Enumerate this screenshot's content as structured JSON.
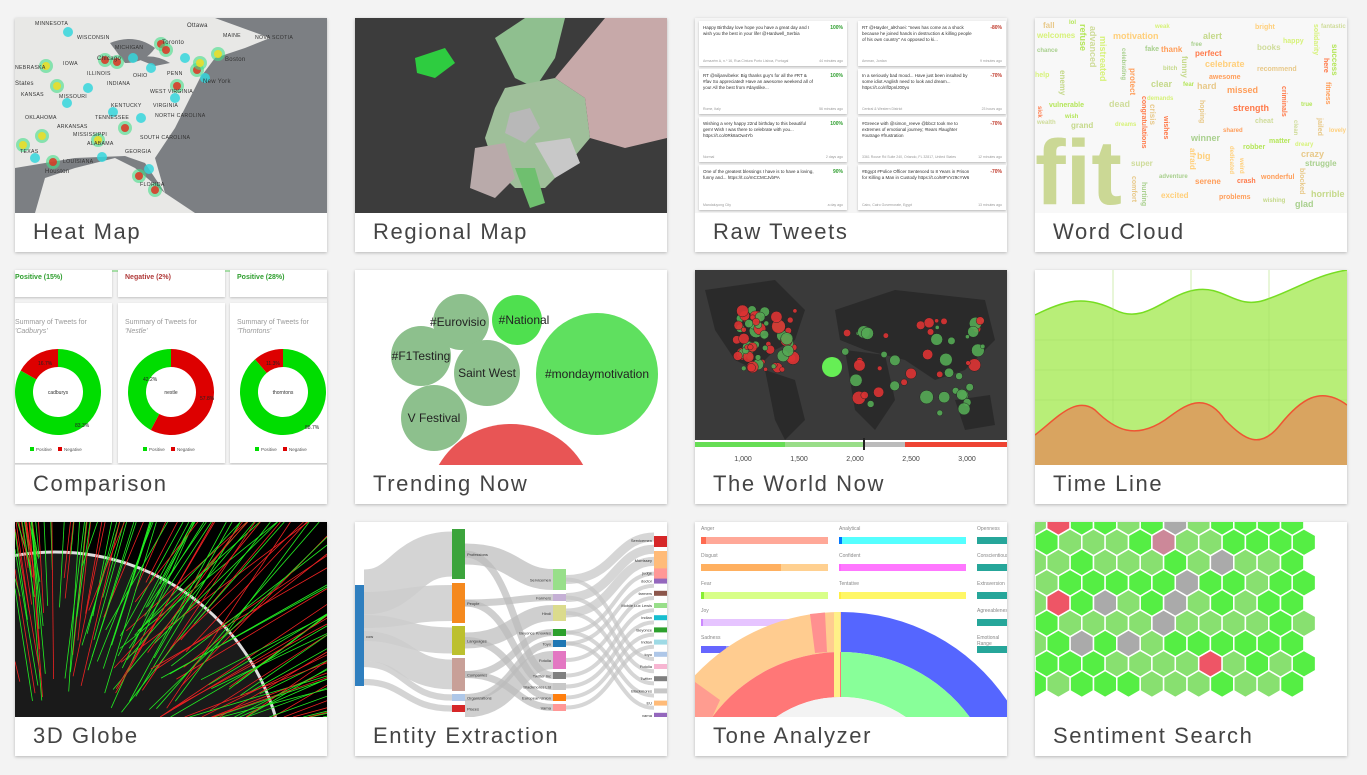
{
  "cards": [
    {
      "id": "heat-map",
      "label": "Heat Map"
    },
    {
      "id": "regional-map",
      "label": "Regional Map"
    },
    {
      "id": "raw-tweets",
      "label": "Raw Tweets"
    },
    {
      "id": "word-cloud",
      "label": "Word Cloud"
    },
    {
      "id": "comparison",
      "label": "Comparison"
    },
    {
      "id": "trending-now",
      "label": "Trending Now"
    },
    {
      "id": "the-world-now",
      "label": "The World Now"
    },
    {
      "id": "time-line",
      "label": "Time Line"
    },
    {
      "id": "3d-globe",
      "label": "3D Globe"
    },
    {
      "id": "entity-extraction",
      "label": "Entity Extraction"
    },
    {
      "id": "tone-analyzer",
      "label": "Tone Analyzer"
    },
    {
      "id": "sentiment-search",
      "label": "Sentiment Search"
    }
  ],
  "heat_map": {
    "places": [
      "MINNESOTA",
      "WISCONSIN",
      "MICHIGAN",
      "Toronto",
      "Ottawa",
      "MAINE",
      "NOVA SCOTIA",
      "IOWA",
      "Chicago",
      "ILLINOIS",
      "INDIANA",
      "OHIO",
      "PENN",
      "New York",
      "Boston",
      "States",
      "KANSAS",
      "MISSOURI",
      "WEST VIRGINIA",
      "VIRGINIA",
      "KENTUCKY",
      "OKLAHOMA",
      "TENNESSEE",
      "NORTH CAROLINA",
      "ARKANSAS",
      "MISSISSIPPI",
      "SOUTH CAROLINA",
      "ALABAMA",
      "GEORGIA",
      "TEXAS",
      "LOUISIANA",
      "Houston",
      "FLORIDA",
      "NEBRASKA"
    ]
  },
  "raw_tweets": [
    {
      "text": "Happy Birthday love hope you have a great day and I wish you the best in your life! @Hardwell_Serbia",
      "score": "100%",
      "location": "Armazém A, n.º 16, Rua Cintura Porto Lisboa, Portugal",
      "time": "44 minutes ago",
      "color": "#2e9e2e"
    },
    {
      "text": "RT @Hayder_alKhoei: \"news has come as a shock because he joined hands in destruction & killing people of his own country\" As opposed to ki...",
      "score": "-80%",
      "location": "Amman, Jordan",
      "time": "9 minutes ago",
      "color": "#c0392b"
    },
    {
      "text": "RT @niljanvibeke: Big thanks guy's for all the #RT & #fav So appreciated! Have an awesome weekend all of you! All the best from #dayslike...",
      "score": "100%",
      "location": "Rome, Italy",
      "time": "56 minutes ago",
      "color": "#2e9e2e"
    },
    {
      "text": "In a seriously bad mood... Have just been insulted by some idiot Anglish need to look and dream... https://t.co/rifl2pnlJ00yo",
      "score": "-70%",
      "location": "Central & Western District",
      "time": "23 hours ago",
      "color": "#c0392b"
    },
    {
      "text": "Wishing a very happy 22nd birthday to this beautiful gem! Wish I was there to celebrate with you... https://t.co/0Rk8aOw4Yb",
      "score": "100%",
      "location": "Normal",
      "time": "2 days ago",
      "color": "#2e9e2e"
    },
    {
      "text": "#Greece with @simon_reeve @bbc2 took me to extremes of emotional journey; #tears #laughter #outrage #frustration",
      "score": "-70%",
      "location": "3361 Rouse Rd Suite 240, Orlando, FL 32817, United States",
      "time": "12 minutes ago",
      "color": "#c0392b"
    },
    {
      "text": "One of the greatest blessings I have is to have a loving, funny and... https://t.co/mCCMCJvbPA",
      "score": "90%",
      "location": "Mandaluyong City",
      "time": "a day ago",
      "color": "#2e9e2e"
    },
    {
      "text": "#Egypt #Police Officer Sentenced to 8 Years in Prison for Killing a Man in Custody https://t.co/MFVVz9cYW6",
      "score": "-70%",
      "location": "Cairo, Cairo Governorate, Egypt",
      "time": "13 minutes ago",
      "color": "#c0392b"
    }
  ],
  "word_cloud": {
    "words": [
      "fit",
      "happy",
      "wish",
      "lovely",
      "fitness",
      "crisis",
      "chance",
      "perfect",
      "wealth",
      "wishing",
      "dreams",
      "success",
      "celebrate",
      "thank",
      "hard",
      "adventure",
      "strength",
      "super",
      "funny",
      "solidarity",
      "matter",
      "motivation",
      "wonderful",
      "recommend",
      "free",
      "crash",
      "dead",
      "grand",
      "weak",
      "fear",
      "afraid",
      "shared",
      "jailed",
      "fake",
      "criminals",
      "advanced",
      "bitch",
      "welcomes",
      "refuse",
      "dedicated",
      "missed",
      "comfort",
      "hurting",
      "sick",
      "clean",
      "enemy",
      "demands",
      "true",
      "excited",
      "serene",
      "hoping",
      "celebrating",
      "congratulations",
      "cheat",
      "clear",
      "dreary",
      "robber",
      "bright",
      "awesome",
      "crazy",
      "glad",
      "wishes",
      "books",
      "alert",
      "help",
      "lol",
      "big",
      "protect",
      "fall",
      "winner",
      "here",
      "fantastic",
      "horrible",
      "mistreated",
      "vulnerable",
      "weird",
      "problems",
      "blocked",
      "struggle"
    ],
    "colors": [
      "#c5d98a",
      "#d7f27a",
      "#b5e65a",
      "#ffcf7a",
      "#ff9e5a",
      "#e8c98a",
      "#a9d08e",
      "#ff7a4a",
      "#cfdc9a"
    ]
  },
  "comparison": {
    "top": [
      {
        "label": "Positive (15%)",
        "color": "#2e9e2e"
      },
      {
        "label": "Negative (2%)",
        "color": "#b03a3a"
      },
      {
        "label": "Positive (28%)",
        "color": "#2e9e2e"
      }
    ],
    "charts": [
      {
        "title": "Summary of Tweets for",
        "brand": "'Cadburys'",
        "center": "cadburys",
        "positive": 83.3,
        "negative": 16.7,
        "pos_label": "83.3%",
        "neg_label": "16.7%"
      },
      {
        "title": "Summary of Tweets for",
        "brand": "'Nestle'",
        "center": "nestle",
        "positive": 42.2,
        "negative": 57.8,
        "pos_label": "42.2%",
        "neg_label": "57.8%"
      },
      {
        "title": "Summary of Tweets for",
        "brand": "'Thorntons'",
        "center": "thorntons",
        "positive": 88.7,
        "negative": 11.3,
        "pos_label": "88.7%",
        "neg_label": "11.3%"
      }
    ],
    "legend": {
      "positive": "Positive",
      "negative": "Negative"
    },
    "colors": {
      "positive": "#00dd00",
      "negative": "#dd0000"
    }
  },
  "trending": [
    {
      "tag": "#Eurovisio",
      "color": "#8dc08d"
    },
    {
      "tag": "#National",
      "color": "#4fe04f"
    },
    {
      "tag": "#F1Testing",
      "color": "#8dc08d"
    },
    {
      "tag": "Saint West",
      "color": "#8dc08d"
    },
    {
      "tag": "#mondaymotivation",
      "color": "#5fe05f"
    },
    {
      "tag": "V Festival",
      "color": "#8dc08d"
    }
  ],
  "world_now": {
    "ticks": [
      "1,000",
      "1,500",
      "2,000",
      "2,500",
      "3,000"
    ]
  },
  "entity": {
    "root": "cow",
    "level1": [
      "Professions",
      "People",
      "Languages",
      "Companies",
      "Organizations",
      "Places"
    ],
    "level2": [
      "Servicemen",
      "Farmers",
      "Hindi",
      "Beyonce Knowles",
      "Toyo",
      "Fotolia",
      "Twitter Inc",
      "Blackmores Ltd",
      "European Union",
      "Varna"
    ],
    "level3": [
      "Servicemen",
      "Morrissey",
      "judge",
      "doctor",
      "farmers",
      "Mobile Lux Lewis",
      "indian",
      "Beyonce",
      "Indian",
      "toyo",
      "Fotolia",
      "Twitter",
      "Blackmores",
      "EU",
      "varna"
    ]
  },
  "tone": {
    "emotion": [
      {
        "label": "Anger",
        "value": 4,
        "color": "#ff6a50",
        "bg": "#ffa898"
      },
      {
        "label": "Disgust",
        "value": 63,
        "color": "#ffb060",
        "bg": "#ffd090"
      },
      {
        "label": "Fear",
        "value": 2,
        "color": "#88ee33",
        "bg": "#d8ff88"
      },
      {
        "label": "Joy",
        "value": 1,
        "color": "#cc88ff",
        "bg": "#e6c4ff"
      },
      {
        "label": "Sadness",
        "value": 20,
        "color": "#6666ff",
        "bg": "#9999ff"
      }
    ],
    "language": [
      {
        "label": "Analytical",
        "value": 2,
        "color": "#0077ff",
        "bg": "#55ffff"
      },
      {
        "label": "Confident",
        "value": 0,
        "color": "#ff66ff",
        "bg": "#ff77ff"
      },
      {
        "label": "Tentative",
        "value": 0,
        "color": "#ffee44",
        "bg": "#fff766"
      }
    ],
    "social": [
      {
        "label": "Openness"
      },
      {
        "label": "Conscientiousness"
      },
      {
        "label": "Extraversion"
      },
      {
        "label": "Agreeableness"
      },
      {
        "label": "Emotional Range"
      }
    ],
    "social_color": "#26a69a"
  },
  "sentiment_colors": {
    "positive": "#55ee44",
    "light": "#88e070",
    "neutral": "#aaaaaa",
    "negative": "#ee5566",
    "pink": "#cc8899"
  }
}
